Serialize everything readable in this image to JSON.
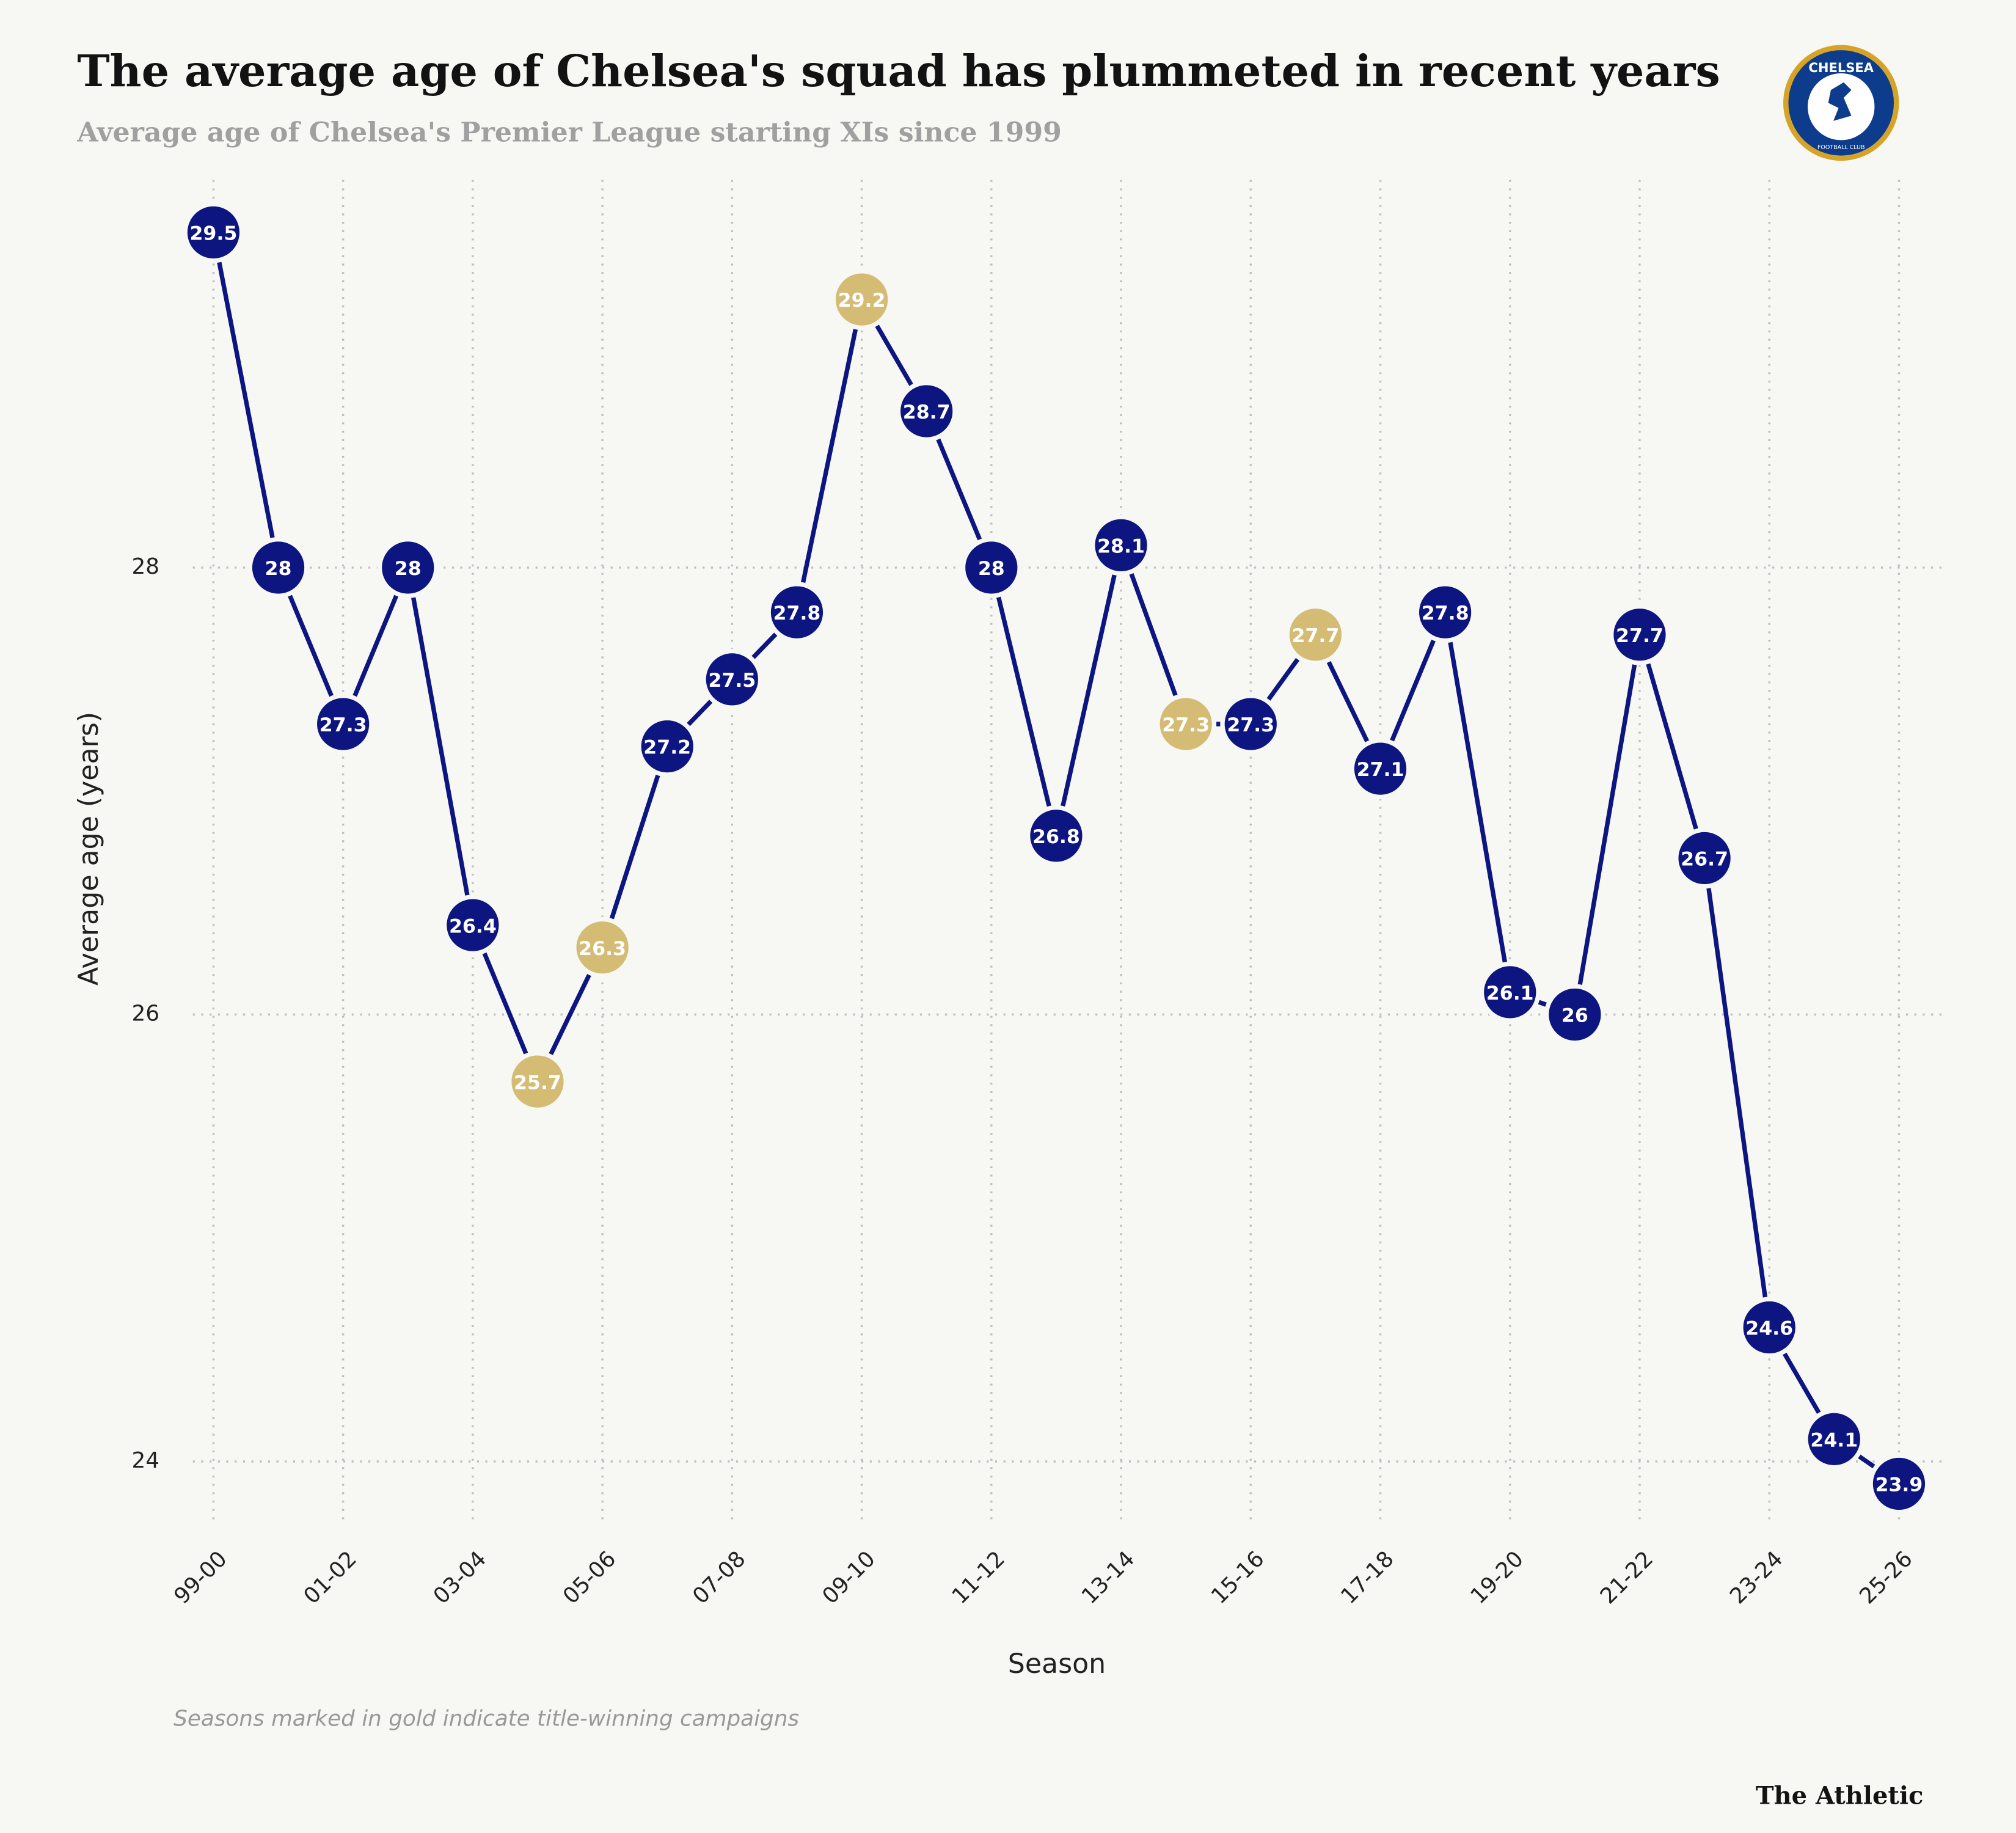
{
  "chart_data": {
    "type": "line",
    "title": "The average age of Chelsea's squad has plummeted in recent years",
    "subtitle": "Average age of Chelsea's Premier League starting XIs since 1999",
    "x_label": "Season",
    "y_label": "Average age (years)",
    "note": "Seasons marked in gold indicate title-winning campaigns",
    "source": "The Athletic",
    "logo_text": [
      "CHELSEA",
      "FOOTBALL CLUB"
    ],
    "categories": [
      "99-00",
      null,
      "01-02",
      null,
      "03-04",
      null,
      "05-06",
      null,
      "07-08",
      null,
      "09-10",
      null,
      "11-12",
      null,
      "13-14",
      null,
      "15-16",
      null,
      "17-18",
      null,
      "19-20",
      null,
      "21-22",
      null,
      "23-24",
      null,
      "25-26"
    ],
    "series": [
      {
        "color": "#0d1680",
        "values": [
          29.5,
          28,
          27.3,
          28,
          26.4,
          25.7,
          26.3,
          27.2,
          27.5,
          27.8,
          29.2,
          28.7,
          28,
          26.8,
          28.1,
          27.3,
          27.3,
          27.7,
          27.1,
          27.8,
          26.1,
          26,
          27.7,
          26.7,
          24.6,
          24.1,
          23.9
        ],
        "point_colors": [
          "#0d1680",
          "#0d1680",
          "#0d1680",
          "#0d1680",
          "#0d1680",
          "#d4bc74",
          "#d4bc74",
          "#0d1680",
          "#0d1680",
          "#0d1680",
          "#d4bc74",
          "#0d1680",
          "#0d1680",
          "#0d1680",
          "#0d1680",
          "#d4bc74",
          "#0d1680",
          "#d4bc74",
          "#0d1680",
          "#0d1680",
          "#0d1680",
          "#0d1680",
          "#0d1680",
          "#0d1680",
          "#0d1680",
          "#0d1680",
          "#0d1680"
        ]
      }
    ],
    "ylim": [
      23.75,
      29.7
    ],
    "yticks": [
      24,
      26,
      28
    ],
    "grid": true
  }
}
